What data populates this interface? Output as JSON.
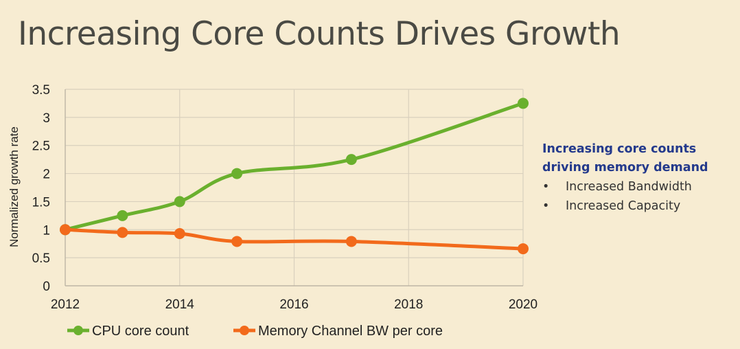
{
  "title": "Increasing Core Counts Drives Growth",
  "callout": {
    "heading_lines": [
      "Increasing core counts",
      "driving memory demand"
    ],
    "bullets": [
      "Increased Bandwidth",
      "Increased Capacity"
    ]
  },
  "chart_data": {
    "type": "line",
    "title": "",
    "xlabel": "",
    "ylabel": "Normalized growth rate",
    "xlim": [
      2012,
      2020
    ],
    "ylim": [
      0,
      3.5
    ],
    "x_ticks": [
      "2012",
      "2014",
      "2016",
      "2018",
      "2020"
    ],
    "y_ticks": [
      "0",
      "0.5",
      "1",
      "1.5",
      "2",
      "2.5",
      "3",
      "3.5"
    ],
    "grid": true,
    "legend_position": "bottom",
    "series": [
      {
        "name": "CPU core count",
        "color": "#6ab02e",
        "x": [
          2012,
          2013,
          2014,
          2015,
          2017,
          2020
        ],
        "y": [
          1,
          1.25,
          1.5,
          2,
          2.25,
          3.25
        ]
      },
      {
        "name": "Memory Channel BW per core",
        "color": "#f26a1b",
        "x": [
          2012,
          2013,
          2014,
          2015,
          2017,
          2020
        ],
        "y": [
          1,
          0.95,
          0.93,
          0.79,
          0.79,
          0.66
        ]
      }
    ]
  }
}
